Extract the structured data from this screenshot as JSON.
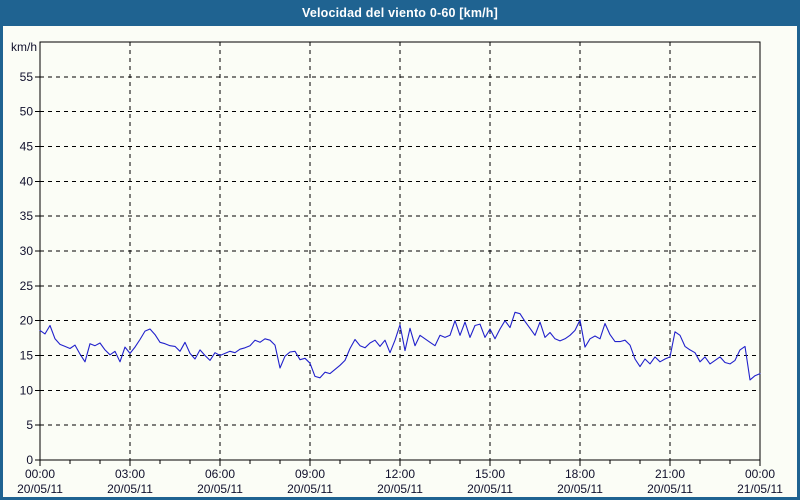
{
  "titlebar": {
    "title": "Velocidad del viento 0-60 [km/h]"
  },
  "colors": {
    "frame_blue": "#1f6391",
    "background": "#fbfdf6",
    "grid_black": "#000000",
    "label_color": "#10102c",
    "line_blue": "#2222cc",
    "title_text": "#ffffff"
  },
  "chart_data": {
    "type": "line",
    "title": "Velocidad del viento 0-60 [km/h]",
    "y_unit_label": "km/h",
    "ylim": [
      0,
      60
    ],
    "y_ticks": [
      0,
      5,
      10,
      15,
      20,
      25,
      30,
      35,
      40,
      45,
      50,
      55
    ],
    "x_major_ticks": [
      {
        "time": "00:00",
        "date": "20/05/11"
      },
      {
        "time": "03:00",
        "date": "20/05/11"
      },
      {
        "time": "06:00",
        "date": "20/05/11"
      },
      {
        "time": "09:00",
        "date": "20/05/11"
      },
      {
        "time": "12:00",
        "date": "20/05/11"
      },
      {
        "time": "15:00",
        "date": "20/05/11"
      },
      {
        "time": "18:00",
        "date": "20/05/11"
      },
      {
        "time": "21:00",
        "date": "20/05/11"
      },
      {
        "time": "00:00",
        "date": "21/05/11"
      }
    ],
    "x_range_hours": 24,
    "x_minor_tick_every_hours": 1,
    "sample_interval_minutes": 10,
    "grid_style": "dashed",
    "legend": "none",
    "line_color": "#2222cc",
    "series": [
      {
        "name": "Velocidad del viento [km/h]",
        "values": [
          18.6,
          18.1,
          19.3,
          17.4,
          16.6,
          16.3,
          16.0,
          16.5,
          15.2,
          14.1,
          16.7,
          16.4,
          16.8,
          15.8,
          15.1,
          15.6,
          14.1,
          16.2,
          15.3,
          16.2,
          17.3,
          18.5,
          18.8,
          18.0,
          16.9,
          16.7,
          16.4,
          16.3,
          15.6,
          16.9,
          15.3,
          14.5,
          15.8,
          15.0,
          14.3,
          15.4,
          15.0,
          15.3,
          15.6,
          15.4,
          15.9,
          16.1,
          16.4,
          17.2,
          16.9,
          17.4,
          17.2,
          16.5,
          13.2,
          14.9,
          15.5,
          15.6,
          14.4,
          14.6,
          13.9,
          12.0,
          11.8,
          12.6,
          12.4,
          13.0,
          13.6,
          14.3,
          16.0,
          17.3,
          16.4,
          16.1,
          16.8,
          17.2,
          16.3,
          17.2,
          15.4,
          17.2,
          19.4,
          15.7,
          18.9,
          16.4,
          17.9,
          17.4,
          16.9,
          16.4,
          17.9,
          17.6,
          17.9,
          20.0,
          17.9,
          19.8,
          17.6,
          19.3,
          19.5,
          17.6,
          18.8,
          17.4,
          18.8,
          20.0,
          19.0,
          21.2,
          21.0,
          19.9,
          18.9,
          17.9,
          19.8,
          17.6,
          18.3,
          17.4,
          17.1,
          17.4,
          17.9,
          18.6,
          20.1,
          16.2,
          17.4,
          17.8,
          17.4,
          19.6,
          18.0,
          17.0,
          17.0,
          17.2,
          16.5,
          14.5,
          13.4,
          14.5,
          13.8,
          14.8,
          14.1,
          14.5,
          14.8,
          18.4,
          17.9,
          16.3,
          15.8,
          15.4,
          14.1,
          14.8,
          13.8,
          14.3,
          14.8,
          14.0,
          13.8,
          14.3,
          15.8,
          16.3,
          11.5,
          12.1,
          12.4
        ]
      }
    ]
  }
}
